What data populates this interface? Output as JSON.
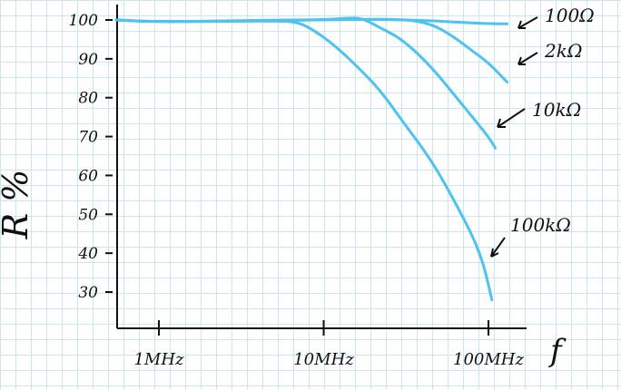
{
  "chart_data": {
    "type": "line",
    "xlabel": "f",
    "ylabel": "R %",
    "x_scale": "log",
    "x_ticks": [
      {
        "value": 1,
        "label": "1MHz"
      },
      {
        "value": 10,
        "label": "10MHz"
      },
      {
        "value": 100,
        "label": "100MHz"
      }
    ],
    "y_ticks": [
      100,
      90,
      80,
      70,
      60,
      50,
      40,
      30
    ],
    "xlim": [
      0.55,
      130
    ],
    "ylim": [
      23,
      102
    ],
    "grid": true,
    "line_color": "#4cc3f0",
    "series": [
      {
        "name": "100Ω",
        "x": [
          0.55,
          1,
          5,
          30,
          100,
          130
        ],
        "y": [
          100,
          99.5,
          100,
          100.2,
          99,
          99
        ]
      },
      {
        "name": "2kΩ",
        "x": [
          0.55,
          1,
          10,
          30,
          45,
          60,
          80,
          100,
          130
        ],
        "y": [
          100,
          99.5,
          100,
          100.3,
          99,
          96,
          92,
          89,
          84
        ]
      },
      {
        "name": "10kΩ",
        "x": [
          0.55,
          1,
          10,
          14,
          17,
          22,
          30,
          45,
          70,
          100,
          110
        ],
        "y": [
          100,
          99.5,
          100,
          100.5,
          100.5,
          98,
          95,
          88,
          78,
          70,
          67
        ]
      },
      {
        "name": "100kΩ",
        "x": [
          0.55,
          1,
          5,
          7,
          9,
          12,
          16,
          22,
          30,
          45,
          65,
          90,
          105
        ],
        "y": [
          100,
          99.5,
          99.8,
          99.5,
          97,
          93,
          88,
          82,
          74,
          64,
          52,
          40,
          28
        ]
      }
    ],
    "labels": [
      "100Ω",
      "2kΩ",
      "10kΩ",
      "100kΩ"
    ]
  }
}
